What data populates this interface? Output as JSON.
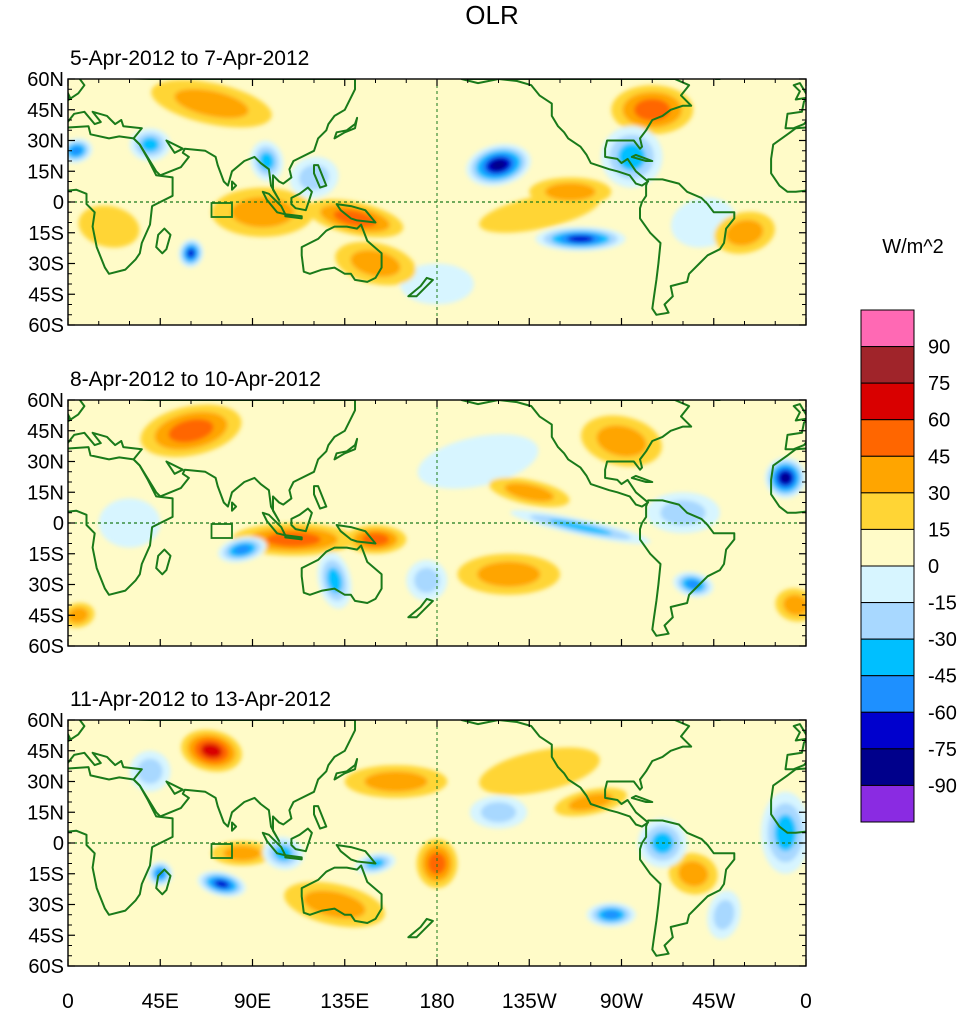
{
  "title": "OLR",
  "panels": [
    {
      "label": "5-Apr-2012 to 7-Apr-2012",
      "anomalies": [
        {
          "lon": 210,
          "lat": 18,
          "rlon": 16,
          "rlat": 10,
          "value": -90
        },
        {
          "lon": 250,
          "lat": -18,
          "rlon": 22,
          "rlat": 6,
          "value": -75
        },
        {
          "lon": 97,
          "lat": 20,
          "rlon": 8,
          "rlat": 10,
          "value": -45
        },
        {
          "lon": 60,
          "lat": -25,
          "rlon": 6,
          "rlat": 7,
          "value": -75
        },
        {
          "lon": 4,
          "lat": 25,
          "rlon": 8,
          "rlat": 6,
          "value": -60
        },
        {
          "lon": 40,
          "lat": 28,
          "rlon": 10,
          "rlat": 8,
          "value": -45
        },
        {
          "lon": 120,
          "lat": 12,
          "rlon": 12,
          "rlat": 10,
          "value": -30
        },
        {
          "lon": 275,
          "lat": 22,
          "rlon": 15,
          "rlat": 15,
          "value": -45
        },
        {
          "lon": 310,
          "lat": -10,
          "rlon": 16,
          "rlat": 12,
          "value": -15
        },
        {
          "lon": 180,
          "lat": -40,
          "rlon": 18,
          "rlat": 10,
          "value": -15
        },
        {
          "lon": 95,
          "lat": -5,
          "rlon": 25,
          "rlat": 12,
          "value": 30
        },
        {
          "lon": 140,
          "lat": -8,
          "rlon": 24,
          "rlat": 8,
          "value": 40
        },
        {
          "lon": 70,
          "lat": 48,
          "rlon": 30,
          "rlat": 10,
          "value": 30
        },
        {
          "lon": 285,
          "lat": 45,
          "rlon": 20,
          "rlat": 12,
          "value": 35
        },
        {
          "lon": 150,
          "lat": -30,
          "rlon": 20,
          "rlat": 10,
          "value": 25
        },
        {
          "lon": 245,
          "lat": 5,
          "rlon": 20,
          "rlat": 7,
          "value": 20
        },
        {
          "lon": 20,
          "lat": -12,
          "rlon": 15,
          "rlat": 10,
          "value": 15
        },
        {
          "lon": 330,
          "lat": -15,
          "rlon": 15,
          "rlat": 10,
          "value": 30
        },
        {
          "lon": 230,
          "lat": -5,
          "rlon": 30,
          "rlat": 8,
          "value": 15
        }
      ]
    },
    {
      "label": "8-Apr-2012 to 10-Apr-2012",
      "anomalies": [
        {
          "lon": 350,
          "lat": 22,
          "rlon": 10,
          "rlat": 10,
          "value": -90
        },
        {
          "lon": 305,
          "lat": -30,
          "rlon": 10,
          "rlat": 6,
          "value": -60
        },
        {
          "lon": 250,
          "lat": -2,
          "rlon": 35,
          "rlat": 4,
          "value": -45
        },
        {
          "lon": 85,
          "lat": -13,
          "rlon": 12,
          "rlat": 6,
          "value": -60
        },
        {
          "lon": 130,
          "lat": -28,
          "rlon": 8,
          "rlat": 14,
          "value": -45
        },
        {
          "lon": 175,
          "lat": -28,
          "rlon": 10,
          "rlat": 10,
          "value": -30
        },
        {
          "lon": 200,
          "lat": 30,
          "rlon": 30,
          "rlat": 12,
          "value": -15
        },
        {
          "lon": 300,
          "lat": 5,
          "rlon": 18,
          "rlat": 10,
          "value": -30
        },
        {
          "lon": 30,
          "lat": 0,
          "rlon": 15,
          "rlat": 12,
          "value": -15
        },
        {
          "lon": 60,
          "lat": 45,
          "rlon": 25,
          "rlat": 12,
          "value": 35
        },
        {
          "lon": 110,
          "lat": -8,
          "rlon": 30,
          "rlat": 8,
          "value": 40
        },
        {
          "lon": 150,
          "lat": -8,
          "rlon": 15,
          "rlat": 7,
          "value": 45
        },
        {
          "lon": 270,
          "lat": 40,
          "rlon": 20,
          "rlat": 12,
          "value": 30
        },
        {
          "lon": 215,
          "lat": -25,
          "rlon": 25,
          "rlat": 10,
          "value": 25
        },
        {
          "lon": 225,
          "lat": 15,
          "rlon": 20,
          "rlat": 6,
          "value": 20
        },
        {
          "lon": 355,
          "lat": -40,
          "rlon": 10,
          "rlat": 8,
          "value": 25
        },
        {
          "lon": 5,
          "lat": -45,
          "rlon": 8,
          "rlat": 6,
          "value": 20
        }
      ]
    },
    {
      "label": "11-Apr-2012 to 13-Apr-2012",
      "anomalies": [
        {
          "lon": 75,
          "lat": -20,
          "rlon": 12,
          "rlat": 6,
          "value": -75
        },
        {
          "lon": 45,
          "lat": -15,
          "rlon": 6,
          "rlat": 6,
          "value": -60
        },
        {
          "lon": 265,
          "lat": -35,
          "rlon": 12,
          "rlat": 6,
          "value": -60
        },
        {
          "lon": 290,
          "lat": 0,
          "rlon": 12,
          "rlat": 12,
          "value": -45
        },
        {
          "lon": 350,
          "lat": 5,
          "rlon": 12,
          "rlat": 20,
          "value": -45
        },
        {
          "lon": 210,
          "lat": 15,
          "rlon": 14,
          "rlat": 8,
          "value": -30
        },
        {
          "lon": 105,
          "lat": -5,
          "rlon": 10,
          "rlat": 8,
          "value": -45
        },
        {
          "lon": 150,
          "lat": -10,
          "rlon": 10,
          "rlat": 5,
          "value": -45
        },
        {
          "lon": 320,
          "lat": -35,
          "rlon": 8,
          "rlat": 12,
          "value": -30
        },
        {
          "lon": 40,
          "lat": 35,
          "rlon": 10,
          "rlat": 10,
          "value": -30
        },
        {
          "lon": 70,
          "lat": 45,
          "rlon": 15,
          "rlat": 10,
          "value": 50
        },
        {
          "lon": 180,
          "lat": -10,
          "rlon": 10,
          "rlat": 12,
          "value": 45
        },
        {
          "lon": 85,
          "lat": -5,
          "rlon": 15,
          "rlat": 6,
          "value": 30
        },
        {
          "lon": 130,
          "lat": -30,
          "rlon": 25,
          "rlat": 10,
          "value": 25
        },
        {
          "lon": 305,
          "lat": -15,
          "rlon": 12,
          "rlat": 10,
          "value": 30
        },
        {
          "lon": 160,
          "lat": 30,
          "rlon": 25,
          "rlat": 8,
          "value": 20
        },
        {
          "lon": 230,
          "lat": 35,
          "rlon": 30,
          "rlat": 10,
          "value": 15
        },
        {
          "lon": 255,
          "lat": 20,
          "rlon": 18,
          "rlat": 6,
          "value": 25
        }
      ]
    }
  ],
  "x_ticks": [
    {
      "lon": 0,
      "label": "0"
    },
    {
      "lon": 45,
      "label": "45E"
    },
    {
      "lon": 90,
      "label": "90E"
    },
    {
      "lon": 135,
      "label": "135E"
    },
    {
      "lon": 180,
      "label": "180"
    },
    {
      "lon": 225,
      "label": "135W"
    },
    {
      "lon": 270,
      "label": "90W"
    },
    {
      "lon": 315,
      "label": "45W"
    },
    {
      "lon": 360,
      "label": "0"
    }
  ],
  "y_ticks": [
    {
      "lat": 60,
      "label": "60N"
    },
    {
      "lat": 45,
      "label": "45N"
    },
    {
      "lat": 30,
      "label": "30N"
    },
    {
      "lat": 15,
      "label": "15N"
    },
    {
      "lat": 0,
      "label": "0"
    },
    {
      "lat": -15,
      "label": "15S"
    },
    {
      "lat": -30,
      "label": "30S"
    },
    {
      "lat": -45,
      "label": "45S"
    },
    {
      "lat": -60,
      "label": "60S"
    }
  ],
  "colorbar": {
    "units": "W/m^2",
    "colors": [
      "#ff69b4",
      "#a0242a",
      "#d90000",
      "#ff6600",
      "#ffa500",
      "#ffd535",
      "#fffbc8",
      "#d7f5ff",
      "#a8d8ff",
      "#00bfff",
      "#1e90ff",
      "#0000cd",
      "#00008b",
      "#8a2be2"
    ],
    "labels": [
      "90",
      "75",
      "60",
      "45",
      "30",
      "15",
      "0",
      "-15",
      "-30",
      "-45",
      "-60",
      "-75",
      "-90"
    ]
  },
  "colors": {
    "land_outline": "#1a7a1a",
    "reference_lines": "#1a7a1a",
    "ocean_base": "#fffbc8"
  }
}
